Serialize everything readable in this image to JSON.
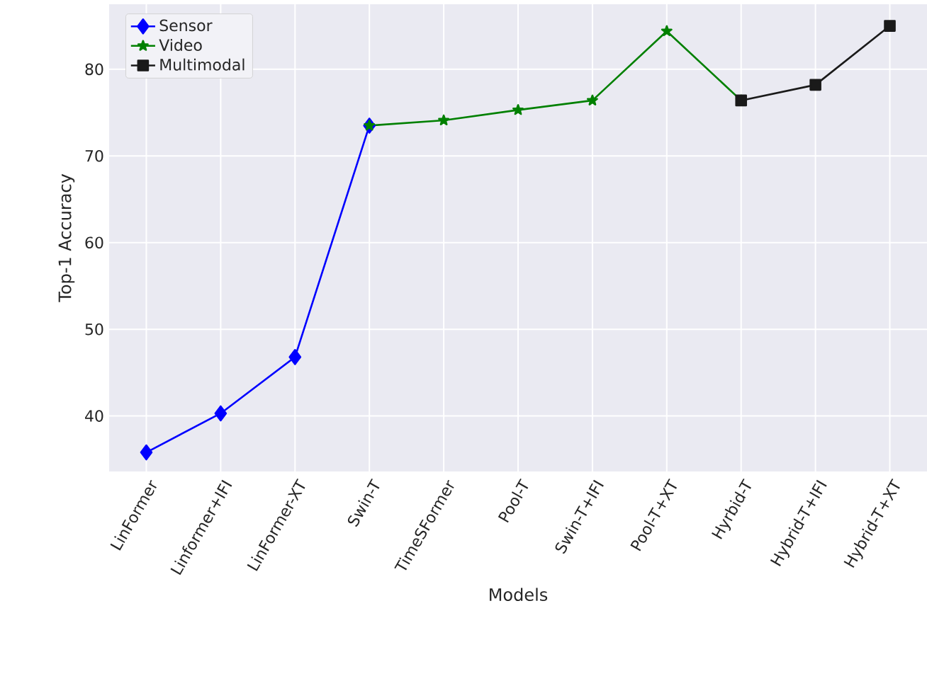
{
  "chart_data": {
    "type": "line",
    "xlabel": "Models",
    "ylabel": "Top-1 Accuracy",
    "categories": [
      "LinFormer",
      "Linformer+IFI",
      "LinFormer-XT",
      "Swin-T",
      "TimeSFormer",
      "Pool-T",
      "Swin-T+IFI",
      "Pool-T+XT",
      "Hyrbid-T",
      "Hybrid-T+IFI",
      "Hybrid-T+XT"
    ],
    "series": [
      {
        "name": "Sensor",
        "color": "#0000ff",
        "marker": "diamond",
        "values": [
          35.8,
          40.3,
          46.8,
          73.5,
          null,
          null,
          null,
          null,
          null,
          null,
          null
        ]
      },
      {
        "name": "Video",
        "color": "#008000",
        "marker": "star",
        "values": [
          null,
          null,
          null,
          73.5,
          74.1,
          75.3,
          76.4,
          84.4,
          76.4,
          null,
          null
        ]
      },
      {
        "name": "Multimodal",
        "color": "#1a1a1a",
        "marker": "square",
        "values": [
          null,
          null,
          null,
          null,
          null,
          null,
          null,
          null,
          76.4,
          78.2,
          85.0
        ]
      }
    ],
    "ylim": [
      33.6,
      87.5
    ],
    "yticks": [
      40,
      50,
      60,
      70,
      80
    ],
    "grid": true,
    "legend": "top left",
    "line_style": "solid"
  }
}
